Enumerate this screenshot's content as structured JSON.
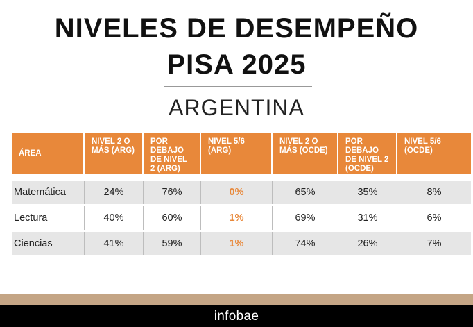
{
  "title_line1": "NIVELES DE DESEMPEÑO",
  "title_line2": "PISA 2025",
  "subtitle": "ARGENTINA",
  "table": {
    "headers": [
      "ÁREA",
      "NIVEL 2 O MÁS (ARG)",
      "POR DEBAJO DE NIVEL 2 (ARG)",
      "NIVEL 5/6 (ARG)",
      "NIVEL 2 O MÁS (OCDE)",
      "POR DEBAJO DE NIVEL 2 (OCDE)",
      "NIVEL 5/6 (OCDE)"
    ],
    "rows": [
      [
        "Matemática",
        "24%",
        "76%",
        "0%",
        "65%",
        "35%",
        "8%"
      ],
      [
        "Lectura",
        "40%",
        "60%",
        "1%",
        "69%",
        "31%",
        "6%"
      ],
      [
        "Ciencias",
        "41%",
        "59%",
        "1%",
        "74%",
        "26%",
        "7%"
      ]
    ]
  },
  "footer": {
    "logo": "infobae"
  },
  "colors": {
    "accent": "#e8883a",
    "footer_band": "#c4a585",
    "footer_bg": "#000000",
    "row_shade": "#e6e6e6"
  }
}
